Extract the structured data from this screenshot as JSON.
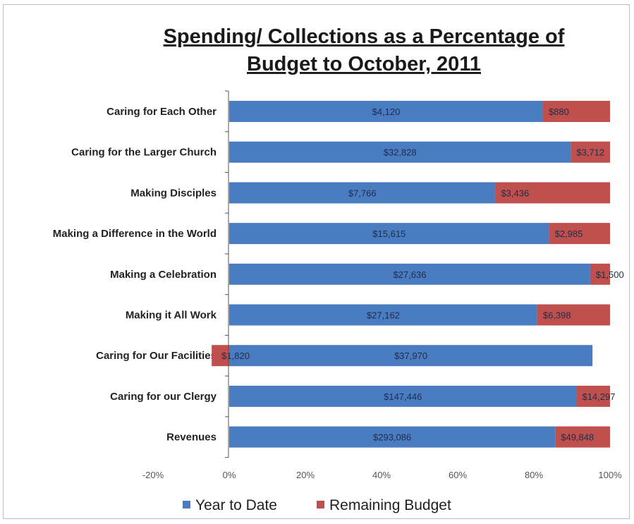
{
  "chart_data": {
    "type": "bar",
    "orientation": "horizontal",
    "stacked": true,
    "title": [
      "Spending/ Collections as a Percentage of",
      "Budget to October,  2011"
    ],
    "xlabel": "",
    "ylabel": "",
    "xlim": [
      -0.2,
      1.0
    ],
    "xticks": [
      -0.2,
      0,
      0.2,
      0.4,
      0.6,
      0.8,
      1.0
    ],
    "xtick_labels": [
      "-20%",
      "0%",
      "20%",
      "40%",
      "60%",
      "80%",
      "100%"
    ],
    "grid": false,
    "legend_position": "bottom",
    "categories": [
      "Caring for Each Other",
      "Caring for the Larger Church",
      "Making Disciples",
      "Making a Difference in the World",
      "Making a Celebration",
      "Making it All Work",
      "Caring for Our Facilities",
      "Caring for our Clergy",
      "Revenues"
    ],
    "series": [
      {
        "name": "Year to Date",
        "color": "#4a7cc1",
        "values": [
          0.824,
          0.897,
          0.699,
          0.84,
          0.948,
          0.809,
          0.954,
          0.912,
          0.856
        ],
        "labels": [
          "$4,120",
          "$32,828",
          "$7,766",
          "$15,615",
          "$27,636",
          "$27,162",
          "$37,970",
          "$147,446",
          "$293,086"
        ]
      },
      {
        "name": "Remaining Budget",
        "color": "#c0504d",
        "values": [
          0.176,
          0.103,
          0.301,
          0.16,
          0.052,
          0.191,
          -0.046,
          0.088,
          0.144
        ],
        "labels": [
          "$880",
          "$3,712",
          "$3,436",
          "$2,985",
          "$1,500",
          "$6,398",
          "$1,820",
          "$14,297",
          "$49,848"
        ]
      }
    ]
  }
}
